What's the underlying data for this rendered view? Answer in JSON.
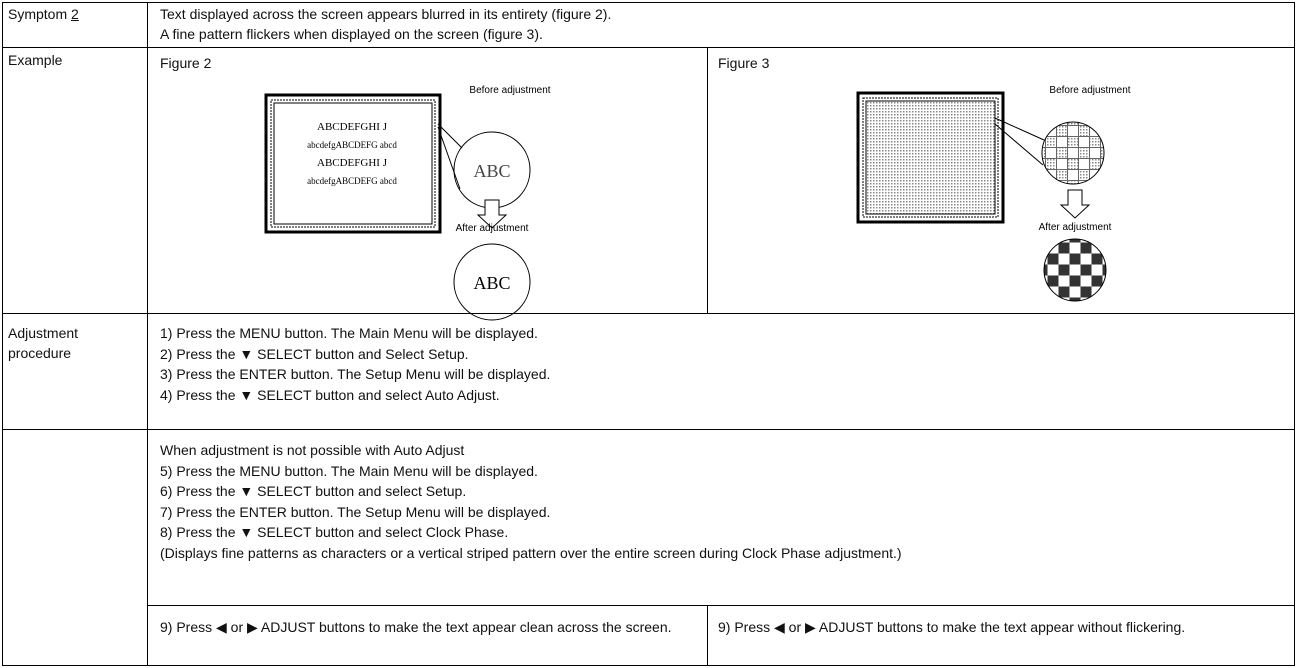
{
  "symptom": {
    "label": "Symptom",
    "number": "2",
    "lines": [
      "Text displayed across the screen appears blurred in its entirety (figure 2).",
      "A fine pattern flickers when displayed on the screen (figure 3)."
    ]
  },
  "example": {
    "label": "Example",
    "figure2": {
      "title": "Figure 2",
      "before": "Before adjustment",
      "after": "After adjustment",
      "screen_lines": [
        "ABCDEFGHI J",
        "abcdefgABCDEFG abcd",
        "ABCDEFGHI J",
        "abcdefgABCDEFG abcd"
      ],
      "before_text": "ABC",
      "after_text": "ABC"
    },
    "figure3": {
      "title": "Figure 3",
      "before": "Before adjustment",
      "after": "After adjustment"
    }
  },
  "procedure": {
    "label": "Adjustment procedure",
    "steps": [
      "1) Press the MENU button. The Main Menu will be displayed.",
      "2) Press the ▼ SELECT button and Select Setup.",
      "3) Press the ENTER button. The Setup Menu will be displayed.",
      "4) Press the ▼ SELECT button and select Auto Adjust."
    ],
    "fallback": {
      "heading": "When adjustment is not possible with Auto Adjust",
      "steps": [
        "5) Press the MENU button. The Main Menu will be displayed.",
        "6) Press the ▼ SELECT button and select Setup.",
        "7) Press the ENTER button. The Setup Menu will be displayed.",
        "8) Press the ▼ SELECT button and select Clock Phase."
      ],
      "note": "(Displays fine patterns as characters or a vertical striped pattern over the entire screen during Clock Phase adjustment.)"
    },
    "final": [
      "9) Press ◀ or ▶ ADJUST buttons to make the text appear clean across the screen.",
      "9) Press ◀ or ▶ ADJUST buttons to make the text appear without flickering."
    ]
  }
}
